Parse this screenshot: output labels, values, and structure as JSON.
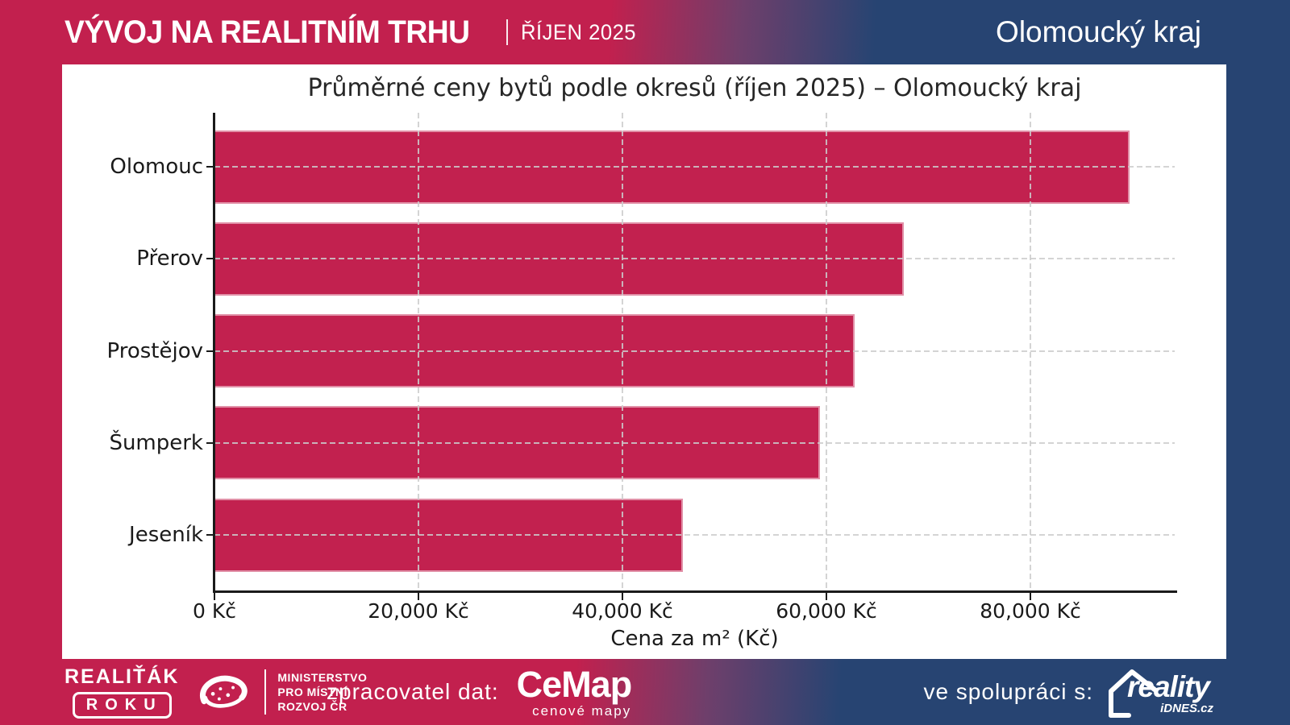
{
  "header": {
    "title": "VÝVOJ NA REALITNÍM TRHU",
    "subtitle": "ŘÍJEN 2025",
    "region": "Olomoucký kraj"
  },
  "chart_data": {
    "type": "bar",
    "orientation": "horizontal",
    "title": "Průměrné ceny bytů podle okresů (říjen 2025) – Olomoucký kraj",
    "categories": [
      "Olomouc",
      "Přerov",
      "Prostějov",
      "Šumperk",
      "Jeseník"
    ],
    "values": [
      89700,
      67600,
      62800,
      59400,
      45900
    ],
    "xlabel": "Cena za m² (Kč)",
    "x_ticks": [
      0,
      20000,
      40000,
      60000,
      80000
    ],
    "x_tick_labels": [
      "0 Kč",
      "20,000 Kč",
      "40,000 Kč",
      "60,000 Kč",
      "80,000 Kč"
    ],
    "xlim": [
      0,
      94150
    ],
    "grid": true,
    "bar_color": "#c2214f"
  },
  "footer": {
    "realitak_line1": "REALIŤÁK",
    "realitak_line2": "ROKU",
    "ministry_lines": [
      "MINISTERSTVO",
      "PRO MÍSTNÍ",
      "ROZVOJ ČR"
    ],
    "data_provider_label": "zpracovatel dat:",
    "cemap_name": "CeMap",
    "cemap_sub": "cenové mapy",
    "partner_label": "ve spolupráci s:",
    "reality_name": "reality",
    "reality_sub": "iDNES.cz"
  },
  "colors": {
    "crimson": "#c2204e",
    "dark_blue": "#274472",
    "panel": "#ffffff",
    "text_dark": "#1a1a1a"
  }
}
